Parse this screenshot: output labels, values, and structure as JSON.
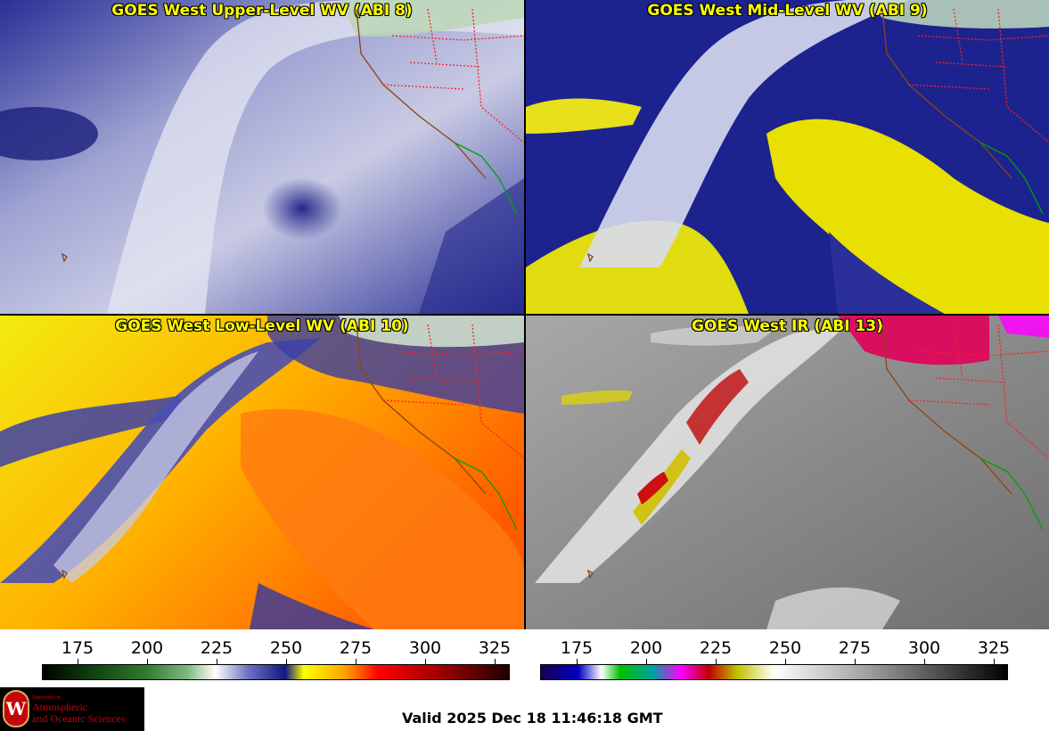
{
  "panels": {
    "upper": {
      "title": "GOES West Upper-Level WV (ABI 8)"
    },
    "mid": {
      "title": "GOES West Mid-Level WV (ABI 9)"
    },
    "low": {
      "title": "GOES West Low-Level WV (ABI 10)"
    },
    "ir": {
      "title": "GOES West IR (ABI 13)"
    }
  },
  "colorbars": {
    "wv": {
      "ticks": [
        "175",
        "200",
        "225",
        "250",
        "275",
        "300",
        "325"
      ]
    },
    "ir": {
      "ticks": [
        "175",
        "200",
        "225",
        "250",
        "275",
        "300",
        "325"
      ]
    }
  },
  "logo": {
    "dept": "Department of",
    "line1": "Atmospheric",
    "line2": "and Oceanic Sciences",
    "seal": "W"
  },
  "footer": {
    "valid": "Valid 2025 Dec 18 11:46:18 GMT"
  },
  "colors": {
    "title": "#ffff00",
    "state_borders": "#ff2020",
    "coast_us": "#8b4513",
    "coast_mx": "#00a000"
  }
}
